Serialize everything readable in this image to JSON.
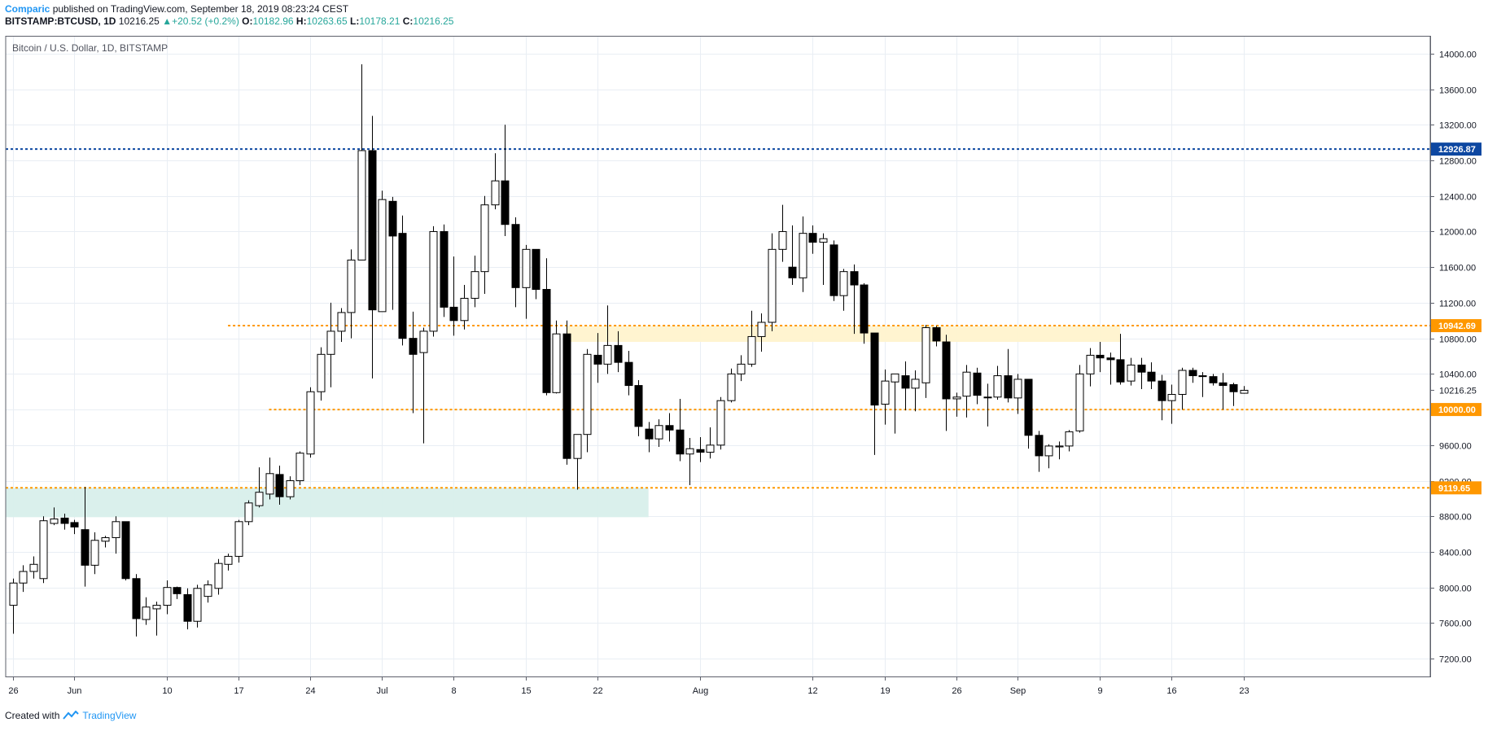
{
  "header": {
    "author": "Comparic",
    "published_text": " published on TradingView.com, September 18, 2019 08:23:24 CEST",
    "symbol": "BITSTAMP:BTCUSD, 1D",
    "last": "10216.25",
    "change": "+20.52 (+0.2%)",
    "o_label": "O:",
    "o_value": "10182.96",
    "h_label": "H:",
    "h_value": "10263.65",
    "l_label": "L:",
    "l_value": "10178.21",
    "c_label": "C:",
    "c_value": "10216.25"
  },
  "footer": {
    "created_with": "Created with",
    "brand": "TradingView"
  },
  "colors": {
    "up_body": "#ffffff",
    "down_body": "#000000",
    "candle_outline": "#000000",
    "resistance_line": "#0d47a1",
    "level_line": "#ff9800",
    "zone_yellow": "#fff3cd",
    "zone_teal": "#d8efeb",
    "grid": "#e9eef4"
  },
  "chart_data": {
    "type": "candlestick",
    "title": "Bitcoin / U.S. Dollar, 1D, BITSTAMP",
    "ylim": [
      7000,
      14200
    ],
    "y_ticks": [
      "7200.00",
      "7600.00",
      "8000.00",
      "8400.00",
      "8800.00",
      "9200.00",
      "9600.00",
      "10000.00",
      "10400.00",
      "10800.00",
      "11200.00",
      "11600.00",
      "12000.00",
      "12400.00",
      "12800.00",
      "13200.00",
      "13600.00",
      "14000.00"
    ],
    "x_ticks": [
      {
        "label": "26",
        "bar": 0
      },
      {
        "label": "Jun",
        "bar": 6
      },
      {
        "label": "10",
        "bar": 15
      },
      {
        "label": "17",
        "bar": 22
      },
      {
        "label": "24",
        "bar": 29
      },
      {
        "label": "Jul",
        "bar": 36
      },
      {
        "label": "8",
        "bar": 43
      },
      {
        "label": "15",
        "bar": 50
      },
      {
        "label": "22",
        "bar": 57
      },
      {
        "label": "Aug",
        "bar": 67
      },
      {
        "label": "12",
        "bar": 78
      },
      {
        "label": "19",
        "bar": 85
      },
      {
        "label": "26",
        "bar": 92
      },
      {
        "label": "Sep",
        "bar": 98
      },
      {
        "label": "9",
        "bar": 106
      },
      {
        "label": "16",
        "bar": 113
      },
      {
        "label": "23",
        "bar": 120
      }
    ],
    "horizontal_levels": [
      {
        "name": "resistance-12926",
        "value": 12926.87,
        "label": "12926.87",
        "style": "blue",
        "from_bar": -4
      },
      {
        "name": "level-10942",
        "value": 10942.69,
        "label": "10942.69",
        "style": "orange",
        "from_bar": 21
      },
      {
        "name": "level-10000",
        "value": 10000.0,
        "label": "10000.00",
        "style": "orange",
        "from_bar": 25
      },
      {
        "name": "level-9119",
        "value": 9119.65,
        "label": "9119.65",
        "style": "orange",
        "from_bar": -3
      }
    ],
    "zones": [
      {
        "name": "zone-yellow",
        "from_bar": 54,
        "to_bar": 108,
        "low": 10760,
        "high": 10940,
        "style": "yellow"
      },
      {
        "name": "zone-teal",
        "from_bar": -3,
        "to_bar": 62,
        "low": 8790,
        "high": 9120,
        "style": "teal"
      }
    ],
    "last_price": {
      "value": 10216.25,
      "label": "10216.25"
    },
    "candles": [
      {
        "o": 7800,
        "h": 8100,
        "l": 7480,
        "c": 8050
      },
      {
        "o": 8050,
        "h": 8250,
        "l": 7950,
        "c": 8180
      },
      {
        "o": 8180,
        "h": 8350,
        "l": 8100,
        "c": 8260
      },
      {
        "o": 8100,
        "h": 8800,
        "l": 8050,
        "c": 8750
      },
      {
        "o": 8720,
        "h": 8900,
        "l": 8700,
        "c": 8770
      },
      {
        "o": 8780,
        "h": 8830,
        "l": 8650,
        "c": 8720
      },
      {
        "o": 8730,
        "h": 8760,
        "l": 8600,
        "c": 8680
      },
      {
        "o": 8650,
        "h": 9130,
        "l": 8010,
        "c": 8250
      },
      {
        "o": 8250,
        "h": 8620,
        "l": 8150,
        "c": 8530
      },
      {
        "o": 8520,
        "h": 8580,
        "l": 8450,
        "c": 8560
      },
      {
        "o": 8560,
        "h": 8800,
        "l": 8380,
        "c": 8740
      },
      {
        "o": 8740,
        "h": 8740,
        "l": 8080,
        "c": 8100
      },
      {
        "o": 8100,
        "h": 8150,
        "l": 7450,
        "c": 7650
      },
      {
        "o": 7640,
        "h": 7890,
        "l": 7580,
        "c": 7780
      },
      {
        "o": 7760,
        "h": 7840,
        "l": 7460,
        "c": 7800
      },
      {
        "o": 7800,
        "h": 8080,
        "l": 7700,
        "c": 8000
      },
      {
        "o": 8000,
        "h": 8010,
        "l": 7870,
        "c": 7930
      },
      {
        "o": 7920,
        "h": 7990,
        "l": 7530,
        "c": 7620
      },
      {
        "o": 7620,
        "h": 8030,
        "l": 7550,
        "c": 7990
      },
      {
        "o": 7900,
        "h": 8080,
        "l": 7830,
        "c": 8030
      },
      {
        "o": 7990,
        "h": 8320,
        "l": 7920,
        "c": 8270
      },
      {
        "o": 8260,
        "h": 8380,
        "l": 8190,
        "c": 8350
      },
      {
        "o": 8350,
        "h": 8760,
        "l": 8280,
        "c": 8740
      },
      {
        "o": 8740,
        "h": 8980,
        "l": 8700,
        "c": 8950
      },
      {
        "o": 8920,
        "h": 9350,
        "l": 8900,
        "c": 9070
      },
      {
        "o": 9050,
        "h": 9460,
        "l": 8990,
        "c": 9280
      },
      {
        "o": 9270,
        "h": 9370,
        "l": 8930,
        "c": 9020
      },
      {
        "o": 9020,
        "h": 9250,
        "l": 8990,
        "c": 9200
      },
      {
        "o": 9200,
        "h": 9530,
        "l": 9150,
        "c": 9510
      },
      {
        "o": 9500,
        "h": 10250,
        "l": 9460,
        "c": 10200
      },
      {
        "o": 10200,
        "h": 10700,
        "l": 10100,
        "c": 10620
      },
      {
        "o": 10620,
        "h": 11200,
        "l": 10250,
        "c": 10880
      },
      {
        "o": 10880,
        "h": 11140,
        "l": 10760,
        "c": 11090
      },
      {
        "o": 11090,
        "h": 11800,
        "l": 10800,
        "c": 11680
      },
      {
        "o": 11680,
        "h": 13880,
        "l": 11690,
        "c": 12910
      },
      {
        "o": 12910,
        "h": 13300,
        "l": 10350,
        "c": 11120
      },
      {
        "o": 11100,
        "h": 12460,
        "l": 11100,
        "c": 12360
      },
      {
        "o": 12340,
        "h": 12390,
        "l": 11120,
        "c": 11950
      },
      {
        "o": 11980,
        "h": 12180,
        "l": 10720,
        "c": 10800
      },
      {
        "o": 10800,
        "h": 11100,
        "l": 9960,
        "c": 10620
      },
      {
        "o": 10640,
        "h": 10920,
        "l": 9620,
        "c": 10880
      },
      {
        "o": 10880,
        "h": 12060,
        "l": 10820,
        "c": 12000
      },
      {
        "o": 12000,
        "h": 12080,
        "l": 11040,
        "c": 11150
      },
      {
        "o": 11150,
        "h": 11720,
        "l": 10830,
        "c": 11000
      },
      {
        "o": 11000,
        "h": 11400,
        "l": 10900,
        "c": 11250
      },
      {
        "o": 11250,
        "h": 11730,
        "l": 11150,
        "c": 11550
      },
      {
        "o": 11550,
        "h": 12400,
        "l": 11300,
        "c": 12300
      },
      {
        "o": 12300,
        "h": 12880,
        "l": 12250,
        "c": 12570
      },
      {
        "o": 12570,
        "h": 13200,
        "l": 11950,
        "c": 12080
      },
      {
        "o": 12080,
        "h": 12160,
        "l": 11150,
        "c": 11370
      },
      {
        "o": 11370,
        "h": 11850,
        "l": 11020,
        "c": 11800
      },
      {
        "o": 11800,
        "h": 11800,
        "l": 11240,
        "c": 11350
      },
      {
        "o": 11350,
        "h": 11700,
        "l": 10160,
        "c": 10190
      },
      {
        "o": 10190,
        "h": 11000,
        "l": 10180,
        "c": 10850
      },
      {
        "o": 10850,
        "h": 11000,
        "l": 9380,
        "c": 9450
      },
      {
        "o": 9450,
        "h": 9720,
        "l": 9100,
        "c": 9720
      },
      {
        "o": 9720,
        "h": 10680,
        "l": 9520,
        "c": 10620
      },
      {
        "o": 10610,
        "h": 10860,
        "l": 10300,
        "c": 10510
      },
      {
        "o": 10510,
        "h": 11170,
        "l": 10400,
        "c": 10720
      },
      {
        "o": 10720,
        "h": 10880,
        "l": 10420,
        "c": 10530
      },
      {
        "o": 10530,
        "h": 10660,
        "l": 10160,
        "c": 10270
      },
      {
        "o": 10270,
        "h": 10330,
        "l": 9700,
        "c": 9810
      },
      {
        "o": 9780,
        "h": 9860,
        "l": 9520,
        "c": 9670
      },
      {
        "o": 9670,
        "h": 9890,
        "l": 9580,
        "c": 9820
      },
      {
        "o": 9820,
        "h": 9960,
        "l": 9640,
        "c": 9770
      },
      {
        "o": 9770,
        "h": 10120,
        "l": 9420,
        "c": 9500
      },
      {
        "o": 9500,
        "h": 9680,
        "l": 9150,
        "c": 9560
      },
      {
        "o": 9550,
        "h": 9690,
        "l": 9410,
        "c": 9520
      },
      {
        "o": 9520,
        "h": 9800,
        "l": 9450,
        "c": 9600
      },
      {
        "o": 9600,
        "h": 10140,
        "l": 9550,
        "c": 10100
      },
      {
        "o": 10100,
        "h": 10460,
        "l": 10080,
        "c": 10400
      },
      {
        "o": 10400,
        "h": 10610,
        "l": 10320,
        "c": 10510
      },
      {
        "o": 10510,
        "h": 11110,
        "l": 10480,
        "c": 10820
      },
      {
        "o": 10820,
        "h": 11080,
        "l": 10650,
        "c": 10980
      },
      {
        "o": 10980,
        "h": 11980,
        "l": 10880,
        "c": 11800
      },
      {
        "o": 11800,
        "h": 12300,
        "l": 11660,
        "c": 12000
      },
      {
        "o": 11600,
        "h": 12070,
        "l": 11400,
        "c": 11480
      },
      {
        "o": 11480,
        "h": 12170,
        "l": 11320,
        "c": 11980
      },
      {
        "o": 11980,
        "h": 12070,
        "l": 11750,
        "c": 11880
      },
      {
        "o": 11880,
        "h": 11980,
        "l": 11400,
        "c": 11920
      },
      {
        "o": 11850,
        "h": 11900,
        "l": 11220,
        "c": 11280
      },
      {
        "o": 11280,
        "h": 11580,
        "l": 11110,
        "c": 11550
      },
      {
        "o": 11550,
        "h": 11630,
        "l": 10850,
        "c": 11400
      },
      {
        "o": 11400,
        "h": 11420,
        "l": 10740,
        "c": 10860
      },
      {
        "o": 10860,
        "h": 10860,
        "l": 9490,
        "c": 10050
      },
      {
        "o": 10060,
        "h": 10450,
        "l": 9830,
        "c": 10320
      },
      {
        "o": 10310,
        "h": 10400,
        "l": 9730,
        "c": 10400
      },
      {
        "o": 10380,
        "h": 10540,
        "l": 9990,
        "c": 10240
      },
      {
        "o": 10240,
        "h": 10440,
        "l": 9980,
        "c": 10340
      },
      {
        "o": 10300,
        "h": 10950,
        "l": 10130,
        "c": 10920
      },
      {
        "o": 10920,
        "h": 10940,
        "l": 10710,
        "c": 10770
      },
      {
        "o": 10760,
        "h": 10840,
        "l": 9760,
        "c": 10120
      },
      {
        "o": 10120,
        "h": 10190,
        "l": 9920,
        "c": 10140
      },
      {
        "o": 10150,
        "h": 10500,
        "l": 9910,
        "c": 10420
      },
      {
        "o": 10410,
        "h": 10470,
        "l": 10060,
        "c": 10160
      },
      {
        "o": 10140,
        "h": 10290,
        "l": 9810,
        "c": 10140
      },
      {
        "o": 10140,
        "h": 10490,
        "l": 10110,
        "c": 10380
      },
      {
        "o": 10380,
        "h": 10680,
        "l": 10080,
        "c": 10130
      },
      {
        "o": 10130,
        "h": 10400,
        "l": 9950,
        "c": 10340
      },
      {
        "o": 10340,
        "h": 10330,
        "l": 9560,
        "c": 9710
      },
      {
        "o": 9710,
        "h": 9760,
        "l": 9300,
        "c": 9480
      },
      {
        "o": 9480,
        "h": 9610,
        "l": 9340,
        "c": 9590
      },
      {
        "o": 9580,
        "h": 9640,
        "l": 9440,
        "c": 9590
      },
      {
        "o": 9590,
        "h": 9770,
        "l": 9530,
        "c": 9750
      },
      {
        "o": 9760,
        "h": 10500,
        "l": 9740,
        "c": 10400
      },
      {
        "o": 10400,
        "h": 10690,
        "l": 10260,
        "c": 10610
      },
      {
        "o": 10610,
        "h": 10760,
        "l": 10420,
        "c": 10580
      },
      {
        "o": 10580,
        "h": 10640,
        "l": 10280,
        "c": 10560
      },
      {
        "o": 10560,
        "h": 10850,
        "l": 10280,
        "c": 10310
      },
      {
        "o": 10320,
        "h": 10580,
        "l": 10270,
        "c": 10500
      },
      {
        "o": 10500,
        "h": 10580,
        "l": 10230,
        "c": 10420
      },
      {
        "o": 10420,
        "h": 10530,
        "l": 10230,
        "c": 10320
      },
      {
        "o": 10320,
        "h": 10390,
        "l": 9880,
        "c": 10100
      },
      {
        "o": 10100,
        "h": 10280,
        "l": 9840,
        "c": 10170
      },
      {
        "o": 10170,
        "h": 10470,
        "l": 10000,
        "c": 10440
      },
      {
        "o": 10440,
        "h": 10470,
        "l": 10300,
        "c": 10380
      },
      {
        "o": 10380,
        "h": 10420,
        "l": 10140,
        "c": 10370
      },
      {
        "o": 10370,
        "h": 10400,
        "l": 10270,
        "c": 10300
      },
      {
        "o": 10300,
        "h": 10410,
        "l": 10000,
        "c": 10270
      },
      {
        "o": 10280,
        "h": 10300,
        "l": 10040,
        "c": 10200
      },
      {
        "o": 10182.96,
        "h": 10263.65,
        "l": 10178.21,
        "c": 10216.25
      }
    ]
  }
}
